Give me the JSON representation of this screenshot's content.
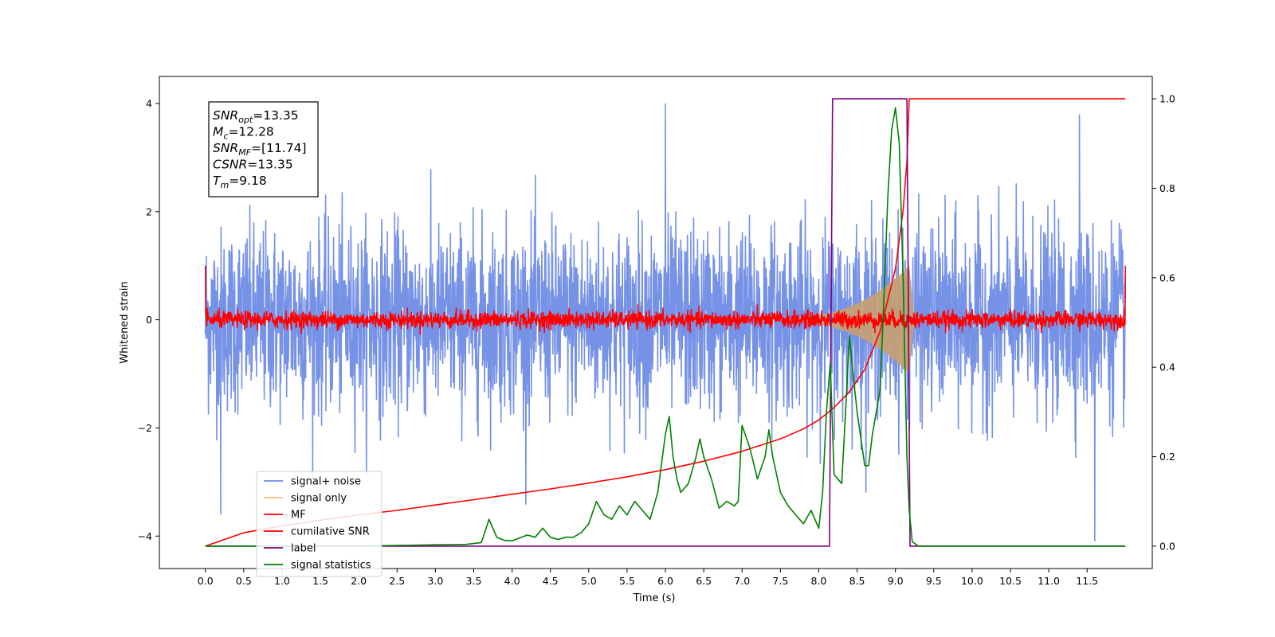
{
  "chart_data": {
    "type": "line",
    "xlabel": "Time (s)",
    "ylabel": "Whitened strain",
    "xlim": [
      -0.6,
      12.35
    ],
    "ylim_left": [
      -4.6,
      4.5
    ],
    "ylim_right": [
      -0.05,
      1.05
    ],
    "x_ticks": [
      "0.0",
      "0.5",
      "1.0",
      "1.5",
      "2.0",
      "2.5",
      "3.0",
      "3.5",
      "4.0",
      "4.5",
      "5.0",
      "5.5",
      "6.0",
      "6.5",
      "7.0",
      "7.5",
      "8.0",
      "8.5",
      "9.0",
      "9.5",
      "10.0",
      "10.5",
      "11.0",
      "11.5"
    ],
    "y_ticks_left": [
      "−4",
      "−2",
      "0",
      "2",
      "4"
    ],
    "y_ticks_right": [
      "0.0",
      "0.2",
      "0.4",
      "0.6",
      "0.8",
      "1.0"
    ],
    "annotation": {
      "lines": [
        {
          "sym": "SNR",
          "sub": "opt",
          "val": "=13.35"
        },
        {
          "sym": "M",
          "sub": "c",
          "val": "=12.28"
        },
        {
          "sym": "SNR",
          "sub": "MF",
          "val": "=[11.74]"
        },
        {
          "sym": "CSNR",
          "sub": "",
          "val": "=13.35"
        },
        {
          "sym": "T",
          "sub": "m",
          "val": "=9.18"
        }
      ]
    },
    "legend": {
      "position": "lower-left",
      "entries": [
        {
          "label": "signal+ noise",
          "color": "#6f8ce6"
        },
        {
          "label": "signal only",
          "color": "#f5c06a"
        },
        {
          "label": "MF",
          "color": "#ff0000"
        },
        {
          "label": "cumilative SNR",
          "color": "#ff0000"
        },
        {
          "label": "label",
          "color": "#800080"
        },
        {
          "label": "signal statistics",
          "color": "#008000"
        }
      ]
    },
    "series": [
      {
        "name": "signal+ noise",
        "axis": "left",
        "color": "#6f8ce6",
        "kind": "noise",
        "x_range": [
          0,
          12
        ],
        "amplitude_std": 1.0,
        "extremes": [
          4.0,
          -3.6,
          3.8,
          -4.1
        ]
      },
      {
        "name": "signal only",
        "axis": "left",
        "color": "#c8a070",
        "kind": "chirp_envelope",
        "x_range": [
          7.0,
          9.18
        ],
        "peak_amplitude": 1.0
      },
      {
        "name": "MF",
        "axis": "left",
        "color": "#ff0000",
        "kind": "noise",
        "x_range": [
          0,
          12
        ],
        "amplitude_std": 0.08,
        "edge_values": [
          1.0,
          1.0
        ]
      },
      {
        "name": "cumilative SNR",
        "axis": "right",
        "color": "#ff0000",
        "x": [
          0,
          0.5,
          1,
          1.5,
          2,
          2.5,
          3,
          3.5,
          4,
          4.5,
          5,
          5.5,
          6,
          6.5,
          7,
          7.5,
          7.8,
          8.0,
          8.2,
          8.4,
          8.6,
          8.8,
          9.0,
          9.1,
          9.15,
          9.18,
          12.0
        ],
        "y": [
          0.0,
          0.03,
          0.045,
          0.058,
          0.07,
          0.08,
          0.092,
          0.104,
          0.116,
          0.128,
          0.141,
          0.155,
          0.171,
          0.19,
          0.212,
          0.24,
          0.262,
          0.282,
          0.31,
          0.345,
          0.395,
          0.48,
          0.62,
          0.75,
          0.86,
          1.0,
          1.0
        ]
      },
      {
        "name": "label",
        "axis": "right",
        "color": "#800080",
        "x": [
          0,
          8.14,
          8.18,
          9.15,
          9.19,
          12.0
        ],
        "y": [
          0,
          0,
          1,
          1,
          0,
          0
        ]
      },
      {
        "name": "signal statistics",
        "axis": "right",
        "color": "#008000",
        "x": [
          0,
          1,
          2,
          3,
          3.4,
          3.6,
          3.7,
          3.8,
          3.9,
          4.0,
          4.2,
          4.3,
          4.4,
          4.5,
          4.6,
          4.7,
          4.8,
          4.9,
          5.0,
          5.1,
          5.2,
          5.3,
          5.4,
          5.5,
          5.6,
          5.7,
          5.8,
          5.9,
          6.0,
          6.05,
          6.1,
          6.15,
          6.2,
          6.3,
          6.4,
          6.45,
          6.5,
          6.6,
          6.7,
          6.8,
          6.9,
          6.95,
          7.0,
          7.1,
          7.2,
          7.3,
          7.35,
          7.4,
          7.5,
          7.6,
          7.7,
          7.8,
          7.9,
          8.0,
          8.05,
          8.1,
          8.15,
          8.2,
          8.3,
          8.35,
          8.4,
          8.45,
          8.5,
          8.6,
          8.65,
          8.7,
          8.8,
          8.85,
          8.9,
          8.95,
          9.0,
          9.05,
          9.1,
          9.15,
          9.18,
          9.22,
          9.3,
          12.0
        ],
        "y": [
          0.0,
          0.0,
          0.0,
          0.003,
          0.004,
          0.008,
          0.06,
          0.02,
          0.013,
          0.012,
          0.025,
          0.02,
          0.04,
          0.02,
          0.015,
          0.02,
          0.02,
          0.03,
          0.05,
          0.1,
          0.07,
          0.06,
          0.09,
          0.07,
          0.1,
          0.08,
          0.06,
          0.12,
          0.25,
          0.29,
          0.2,
          0.15,
          0.12,
          0.14,
          0.2,
          0.24,
          0.2,
          0.15,
          0.085,
          0.1,
          0.09,
          0.1,
          0.27,
          0.22,
          0.15,
          0.2,
          0.26,
          0.2,
          0.12,
          0.09,
          0.07,
          0.05,
          0.08,
          0.04,
          0.12,
          0.3,
          0.41,
          0.16,
          0.14,
          0.3,
          0.47,
          0.38,
          0.3,
          0.18,
          0.18,
          0.25,
          0.35,
          0.55,
          0.78,
          0.93,
          0.98,
          0.9,
          0.6,
          0.2,
          0.08,
          0.01,
          0.0,
          0.0
        ]
      }
    ]
  }
}
